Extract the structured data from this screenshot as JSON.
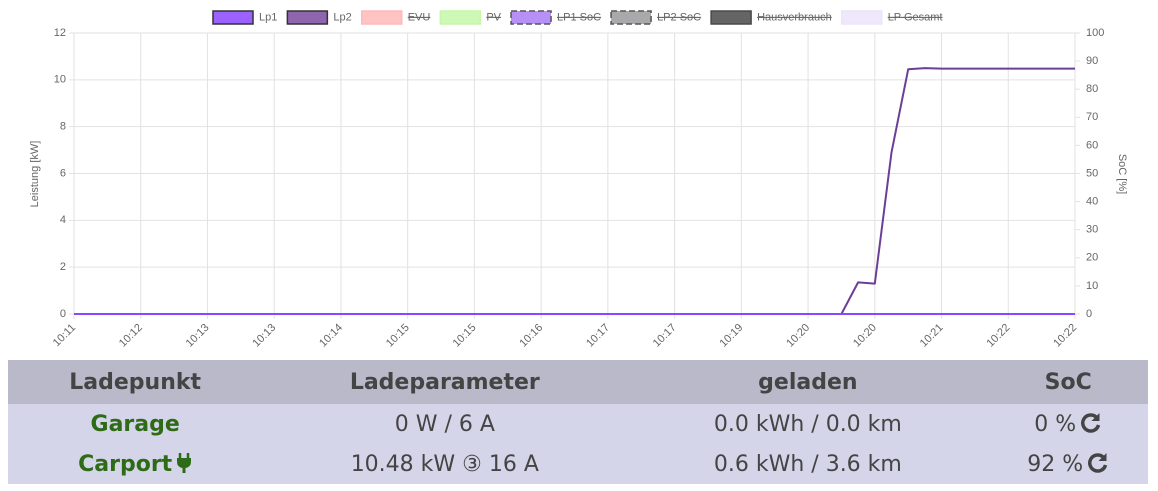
{
  "chart_data": {
    "type": "line",
    "categories": [
      "10:11",
      null,
      null,
      null,
      "10:12",
      null,
      null,
      null,
      "10:13",
      null,
      null,
      null,
      "10:13",
      null,
      null,
      null,
      "10:14",
      null,
      null,
      null,
      "10:15",
      null,
      null,
      null,
      "10:15",
      null,
      null,
      null,
      "10:16",
      null,
      null,
      null,
      "10:17",
      null,
      null,
      null,
      "10:17",
      null,
      null,
      null,
      "10:19",
      null,
      null,
      null,
      "10:20",
      null,
      null,
      null,
      "10:20",
      null,
      null,
      null,
      "10:21",
      null,
      null,
      null,
      "10:22",
      null,
      null,
      null,
      "10:22"
    ],
    "y_label": "Leistung [kW]",
    "y2_label": "SoC [%]",
    "ylim": [
      0,
      12
    ],
    "yticks": [
      0,
      2,
      4,
      6,
      8,
      10,
      12
    ],
    "y2lim": [
      0,
      100
    ],
    "y2ticks": [
      0,
      10,
      20,
      30,
      40,
      50,
      60,
      70,
      80,
      90,
      100
    ],
    "grid": true,
    "series": [
      {
        "name": "Lp2",
        "color": "#6b3f95",
        "values": [
          0,
          0,
          0,
          0,
          0,
          0,
          0,
          0,
          0,
          0,
          0,
          0,
          0,
          0,
          0,
          0,
          0,
          0,
          0,
          0,
          0,
          0,
          0,
          0,
          0,
          0,
          0,
          0,
          0,
          0,
          0,
          0,
          0,
          0,
          0,
          0,
          0,
          0,
          0,
          0,
          0,
          0,
          0,
          0,
          0,
          0,
          0,
          1.35,
          1.3,
          6.9,
          10.45,
          10.5,
          10.48,
          10.48,
          10.48,
          10.48,
          10.48,
          10.48,
          10.48,
          10.48,
          10.48
        ]
      },
      {
        "name": "Lp1",
        "color": "#8b46ff",
        "values": [
          0,
          0,
          0,
          0,
          0,
          0,
          0,
          0,
          0,
          0,
          0,
          0,
          0,
          0,
          0,
          0,
          0,
          0,
          0,
          0,
          0,
          0,
          0,
          0,
          0,
          0,
          0,
          0,
          0,
          0,
          0,
          0,
          0,
          0,
          0,
          0,
          0,
          0,
          0,
          0,
          0,
          0,
          0,
          0,
          0,
          0,
          0,
          0,
          0,
          0,
          0,
          0,
          0,
          0,
          0,
          0,
          0,
          0,
          0,
          0,
          0
        ]
      }
    ],
    "legend": [
      {
        "name": "Lp1",
        "color": "#8b46ff",
        "hidden": false,
        "dashed": false
      },
      {
        "name": "Lp2",
        "color": "#7b4a9f",
        "hidden": false,
        "dashed": false
      },
      {
        "name": "EVU",
        "color": "#ffb9b9",
        "hidden": true,
        "dashed": false
      },
      {
        "name": "PV",
        "color": "#c6f7a8",
        "hidden": true,
        "dashed": false
      },
      {
        "name": "LP1 SoC",
        "color": "#a97cf5",
        "hidden": true,
        "dashed": true
      },
      {
        "name": "LP2 SoC",
        "color": "#9a9a9e",
        "hidden": true,
        "dashed": true
      },
      {
        "name": "Hausverbrauch",
        "color": "#4a4a4a",
        "hidden": true,
        "dashed": false
      },
      {
        "name": "LP Gesamt",
        "color": "#ece4fa",
        "hidden": true,
        "dashed": false
      }
    ]
  },
  "table": {
    "header": [
      "Ladepunkt",
      "Ladeparameter",
      "geladen",
      "SoC"
    ],
    "rows": [
      [
        "Garage",
        "0 W / 6 A",
        "0.0 kWh / 0.0 km",
        "0 %"
      ],
      [
        "Carport",
        "10.48 kW ③ 16 A",
        "0.6 kWh / 3.6 km",
        "92 %"
      ]
    ]
  }
}
